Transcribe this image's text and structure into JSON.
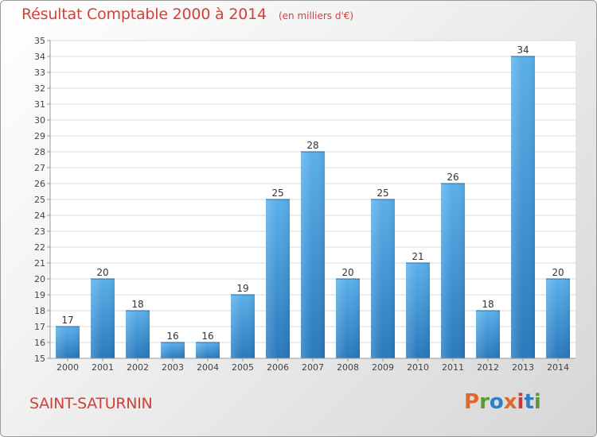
{
  "title": "Résultat Comptable 2000 à 2014",
  "unit": "(en milliers d'€)",
  "city": "SAINT-SATURNIN",
  "logo": "Proxiti",
  "colors": {
    "title": "#d0413a",
    "bar_light": "#5aaee8",
    "bar_dark": "#2a7fc2",
    "logo": [
      "#e0682c",
      "#5a9a35",
      "#2f7fc8",
      "#e0682c",
      "#c23a3a",
      "#2f7fc8",
      "#5a9a35"
    ]
  },
  "chart_data": {
    "type": "bar",
    "title": "Résultat Comptable 2000 à 2014",
    "subtitle": "(en milliers d'€)",
    "xlabel": "",
    "ylabel": "",
    "categories": [
      "2000",
      "2001",
      "2002",
      "2003",
      "2004",
      "2005",
      "2006",
      "2007",
      "2008",
      "2009",
      "2010",
      "2011",
      "2012",
      "2013",
      "2014"
    ],
    "values": [
      17,
      20,
      18,
      16,
      16,
      19,
      25,
      28,
      20,
      25,
      21,
      26,
      18,
      34,
      20
    ],
    "ylim": [
      15,
      35
    ],
    "yticks": [
      15,
      16,
      17,
      18,
      19,
      20,
      21,
      22,
      23,
      24,
      25,
      26,
      27,
      28,
      29,
      30,
      31,
      32,
      33,
      34,
      35
    ],
    "grid": true
  }
}
